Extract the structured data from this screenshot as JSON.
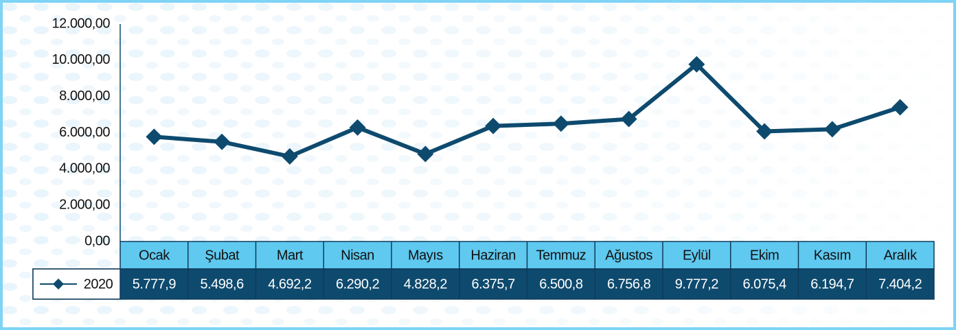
{
  "chart_data": {
    "type": "line",
    "categories": [
      "Ocak",
      "Şubat",
      "Mart",
      "Nisan",
      "Mayıs",
      "Haziran",
      "Temmuz",
      "Ağustos",
      "Eylül",
      "Ekim",
      "Kasım",
      "Aralık"
    ],
    "series": [
      {
        "name": "2020",
        "color": "#0e4a6e",
        "values": [
          5777.9,
          5498.6,
          4692.2,
          6290.2,
          4828.2,
          6375.7,
          6500.8,
          6756.8,
          9777.2,
          6075.4,
          6194.7,
          7404.2
        ],
        "value_labels": [
          "5.777,9",
          "5.498,6",
          "4.692,2",
          "6.290,2",
          "4.828,2",
          "6.375,7",
          "6.500,8",
          "6.756,8",
          "9.777,2",
          "6.075,4",
          "6.194,7",
          "7.404,2"
        ]
      }
    ],
    "ylim": [
      0,
      12000
    ],
    "yticks": [
      {
        "value": 0,
        "label": "0,00"
      },
      {
        "value": 2000,
        "label": "2.000,00"
      },
      {
        "value": 4000,
        "label": "4.000,00"
      },
      {
        "value": 6000,
        "label": "6.000,00"
      },
      {
        "value": 8000,
        "label": "8.000,00"
      },
      {
        "value": 10000,
        "label": "10.000,00"
      },
      {
        "value": 12000,
        "label": "12.000,00"
      }
    ],
    "grid": false
  }
}
